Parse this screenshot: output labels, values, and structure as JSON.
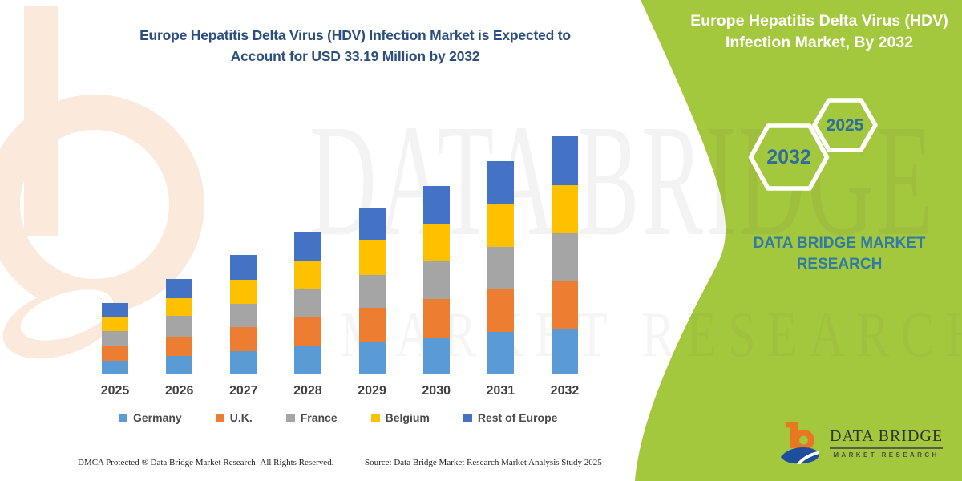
{
  "chart_panel": {
    "title_line1": "Europe Hepatitis Delta Virus (HDV) Infection Market is Expected to",
    "title_line2": "Account for USD 33.19 Million by 2032",
    "footer_left": "DMCA Protected ® Data Bridge Market Research-  All Rights Reserved.",
    "footer_right": "Source: Data Bridge Market Research  Market Analysis Study 2025"
  },
  "chart_data": {
    "type": "bar",
    "stacked": true,
    "title": "Europe Hepatitis Delta Virus (HDV) Infection Market is Expected to Account for USD 33.19 Million by 2032",
    "unit": "USD Million",
    "xlabel": "",
    "ylabel": "",
    "grid": false,
    "legend_position": "bottom",
    "categories": [
      "2025",
      "2026",
      "2027",
      "2028",
      "2029",
      "2030",
      "2031",
      "2032"
    ],
    "series": [
      {
        "name": "Germany",
        "color": "#5B9BD5",
        "values": [
          1.9,
          2.6,
          3.2,
          3.9,
          4.6,
          5.2,
          5.9,
          6.4
        ]
      },
      {
        "name": "U.K.",
        "color": "#ED7D31",
        "values": [
          2.1,
          2.7,
          3.4,
          4.0,
          4.7,
          5.3,
          6.0,
          6.6
        ]
      },
      {
        "name": "France",
        "color": "#A5A5A5",
        "values": [
          2.0,
          2.8,
          3.3,
          3.9,
          4.6,
          5.3,
          5.9,
          6.7
        ]
      },
      {
        "name": "Belgium",
        "color": "#FFC000",
        "values": [
          1.9,
          2.5,
          3.3,
          4.0,
          4.7,
          5.2,
          6.0,
          6.7
        ]
      },
      {
        "name": "Rest of Europe",
        "color": "#4472C4",
        "values": [
          2.0,
          2.7,
          3.5,
          4.0,
          4.6,
          5.3,
          5.9,
          6.79
        ]
      }
    ],
    "totals_estimated": [
      9.9,
      13.3,
      16.7,
      19.8,
      23.2,
      26.3,
      29.7,
      33.19
    ],
    "ylim": [
      0,
      33.19
    ]
  },
  "right_panel": {
    "title": "Europe Hepatitis Delta Virus (HDV) Infection Market, By 2032",
    "hexagon_large_label": "2032",
    "hexagon_small_label": "2025",
    "brand_text": "DATA BRIDGE MARKET RESEARCH",
    "background_color": "#A4C83D",
    "text_color": "#2F7BA3"
  },
  "watermark": {
    "line1": "DATA BRIDGE",
    "line2": "MARKET RESEARCH"
  },
  "logo": {
    "name_line": "DATA BRIDGE",
    "tagline": "MARKET RESEARCH"
  }
}
